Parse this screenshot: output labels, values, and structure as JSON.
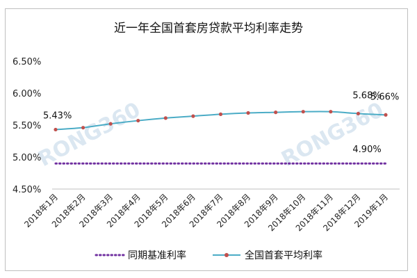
{
  "chart_data": {
    "type": "line",
    "title": "近一年全国首套房贷款平均利率走势",
    "x": [
      "2018年1月",
      "2018年2月",
      "2018年3月",
      "2018年4月",
      "2018年5月",
      "2018年6月",
      "2018年7月",
      "2018年8月",
      "2018年9月",
      "2018年10月",
      "2018年11月",
      "2018年12月",
      "2019年1月"
    ],
    "yticks": [
      "6.50%",
      "6.00%",
      "5.50%",
      "5.00%",
      "4.50%"
    ],
    "ylim": [
      4.5,
      6.5
    ],
    "series": [
      {
        "name": "全国首套平均利率",
        "color": "#4bacc6",
        "marker_color": "#c0504d",
        "values": [
          5.43,
          5.46,
          5.52,
          5.57,
          5.61,
          5.64,
          5.67,
          5.69,
          5.7,
          5.71,
          5.71,
          5.68,
          5.66
        ]
      },
      {
        "name": "同期基准利率",
        "color": "#7030a0",
        "values": [
          4.9,
          4.9,
          4.9,
          4.9,
          4.9,
          4.9,
          4.9,
          4.9,
          4.9,
          4.9,
          4.9,
          4.9,
          4.9
        ]
      }
    ],
    "annotations": [
      "5.43%",
      "5.68%",
      "5.66%",
      "4.90%"
    ],
    "legend": {
      "position": "bottom"
    },
    "grid": false
  },
  "watermark": "RONG360"
}
